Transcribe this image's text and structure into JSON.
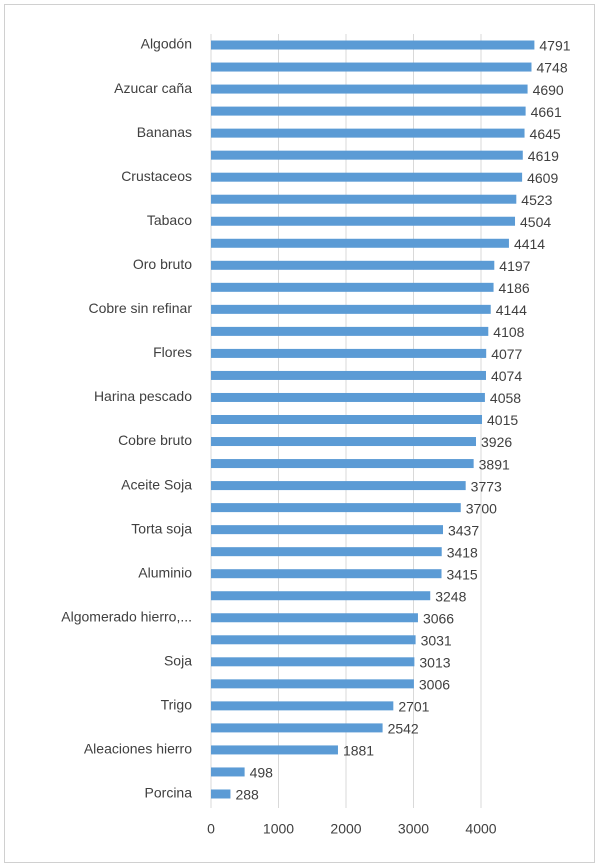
{
  "chart_data": {
    "type": "barh",
    "categories": [
      "Algodón",
      null,
      "Azucar caña",
      null,
      "Bananas",
      null,
      "Crustaceos",
      null,
      "Tabaco",
      null,
      "Oro bruto",
      null,
      "Cobre sin refinar",
      null,
      "Flores",
      null,
      "Harina pescado",
      null,
      "Cobre bruto",
      null,
      "Aceite Soja",
      null,
      "Torta soja",
      null,
      "Aluminio",
      null,
      "Algomerado hierro,...",
      null,
      "Soja",
      null,
      "Trigo",
      null,
      "Aleaciones hierro",
      null,
      "Porcina"
    ],
    "values": [
      4791,
      4748,
      4690,
      4661,
      4645,
      4619,
      4609,
      4523,
      4504,
      4414,
      4197,
      4186,
      4144,
      4108,
      4077,
      4074,
      4058,
      4015,
      3926,
      3891,
      3773,
      3700,
      3437,
      3418,
      3415,
      3248,
      3066,
      3031,
      3013,
      3006,
      2701,
      2542,
      1881,
      498,
      288
    ],
    "color": "#5b9bd5",
    "xlim": [
      0,
      5000
    ],
    "xticks": [
      0,
      1000,
      2000,
      3000,
      4000
    ],
    "grid": true
  }
}
